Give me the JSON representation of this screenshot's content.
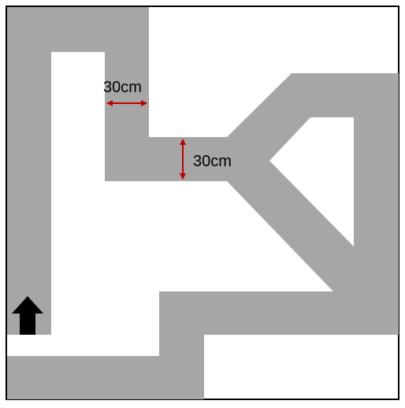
{
  "diagram": {
    "labels": {
      "width_label": "30cm",
      "height_label": "30cm"
    },
    "colors": {
      "background": "#ffffff",
      "border": "#000000",
      "track": "#a6a6a6",
      "dimension_arrow": "#c00000",
      "direction_arrow": "#000000",
      "label_text": "#000000"
    },
    "icons": {
      "start_marker": "arrow-up-icon"
    }
  }
}
